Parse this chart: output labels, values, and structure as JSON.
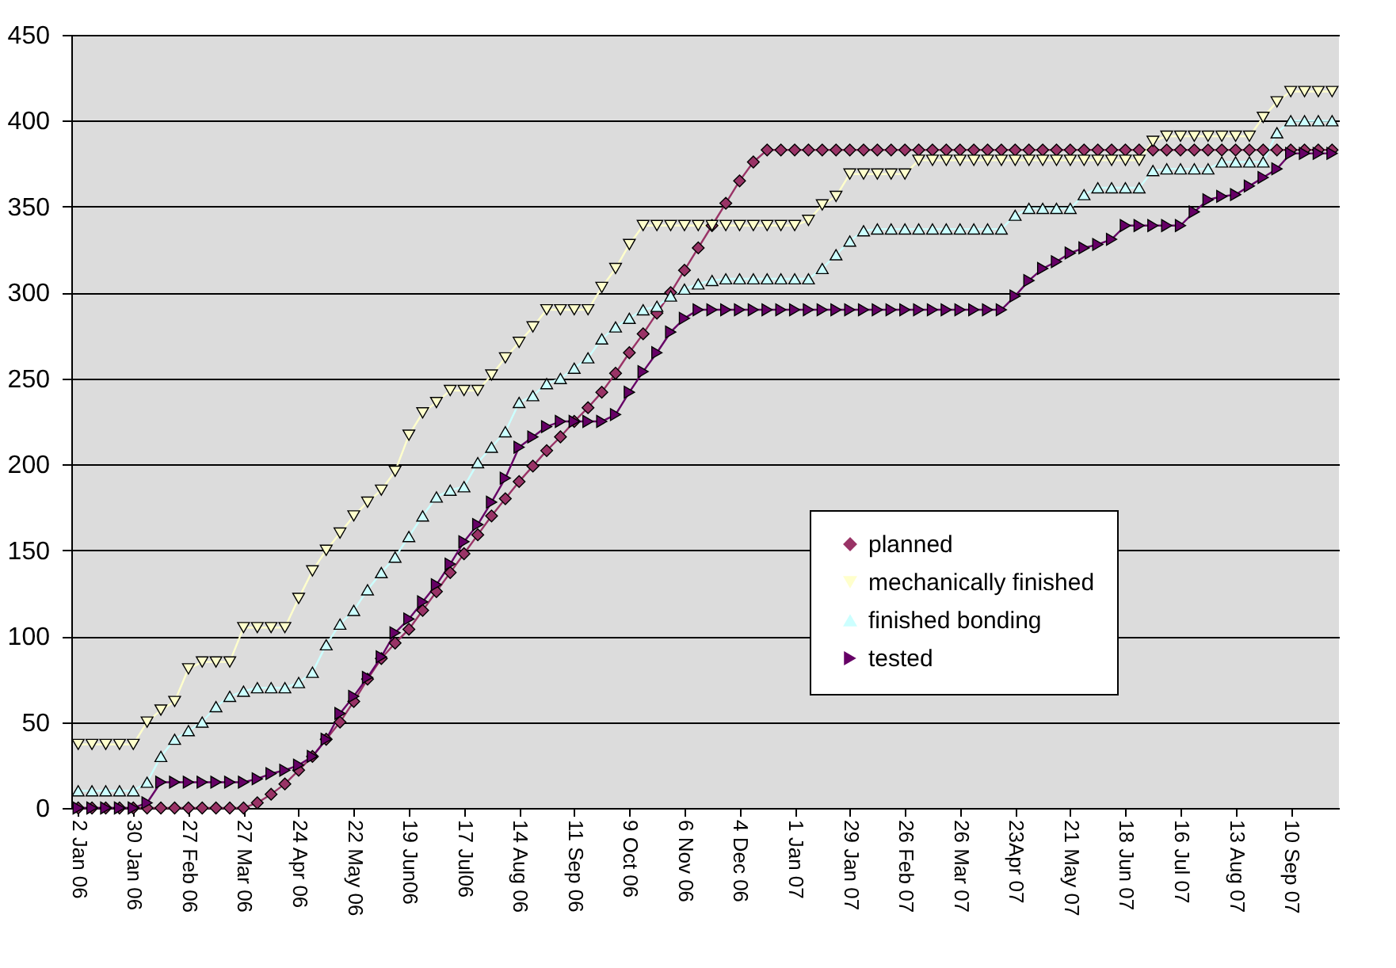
{
  "chart_data": {
    "type": "line",
    "categories": [
      "2 Jan 06",
      null,
      null,
      null,
      "30 Jan 06",
      null,
      null,
      null,
      "27 Feb 06",
      null,
      null,
      null,
      "27 Mar 06",
      null,
      null,
      null,
      "24 Apr 06",
      null,
      null,
      null,
      "22 May 06",
      null,
      null,
      null,
      "19 Jun06",
      null,
      null,
      null,
      "17 Jul06",
      null,
      null,
      null,
      "14 Aug 06",
      null,
      null,
      null,
      "11 Sep 06",
      null,
      null,
      null,
      "9 Oct 06",
      null,
      null,
      null,
      "6 Nov 06",
      null,
      null,
      null,
      "4 Dec 06",
      null,
      null,
      null,
      "1 Jan 07",
      null,
      null,
      null,
      "29 Jan 07",
      null,
      null,
      null,
      "26 Feb 07",
      null,
      null,
      null,
      "26 Mar 07",
      null,
      null,
      null,
      "23Apr 07",
      null,
      null,
      null,
      "21 May 07",
      null,
      null,
      null,
      "18 Jun 07",
      null,
      null,
      null,
      "16 Jul 07",
      null,
      null,
      null,
      "13 Aug 07",
      null,
      null,
      null,
      "10 Sep 07",
      null,
      null,
      null
    ],
    "series": [
      {
        "name": "planned",
        "color": "#993366",
        "marker": "diamond",
        "values": [
          0,
          0,
          0,
          0,
          0,
          0,
          0,
          0,
          0,
          0,
          0,
          0,
          0,
          3,
          8,
          14,
          22,
          30,
          40,
          50,
          62,
          75,
          87,
          96,
          104,
          115,
          126,
          137,
          148,
          159,
          170,
          180,
          190,
          199,
          208,
          216,
          225,
          233,
          242,
          253,
          265,
          276,
          288,
          300,
          313,
          326,
          339,
          352,
          365,
          376,
          383,
          383,
          383,
          383,
          383,
          383,
          383,
          383,
          383,
          383,
          383,
          383,
          383,
          383,
          383,
          383,
          383,
          383,
          383,
          383,
          383,
          383,
          383,
          383,
          383,
          383,
          383,
          383,
          383,
          383,
          383,
          383,
          383,
          383,
          383,
          383,
          383,
          383,
          383,
          383,
          383,
          383
        ]
      },
      {
        "name": "mechanically finished",
        "color": "#ffffcc",
        "marker": "triangle-down",
        "values": [
          37,
          37,
          37,
          37,
          37,
          50,
          57,
          62,
          81,
          85,
          85,
          85,
          105,
          105,
          105,
          105,
          122,
          138,
          150,
          160,
          170,
          178,
          185,
          196,
          217,
          230,
          236,
          243,
          243,
          243,
          252,
          262,
          271,
          280,
          290,
          290,
          290,
          290,
          303,
          314,
          328,
          339,
          339,
          339,
          339,
          339,
          339,
          339,
          339,
          339,
          339,
          339,
          339,
          342,
          351,
          356,
          369,
          369,
          369,
          369,
          369,
          377,
          377,
          377,
          377,
          377,
          377,
          377,
          377,
          377,
          377,
          377,
          377,
          377,
          377,
          377,
          377,
          377,
          388,
          391,
          391,
          391,
          391,
          391,
          391,
          391,
          402,
          411,
          417,
          417,
          417,
          417
        ]
      },
      {
        "name": "finished bonding",
        "color": "#ccffff",
        "marker": "triangle",
        "values": [
          10,
          10,
          10,
          10,
          10,
          15,
          30,
          40,
          45,
          50,
          59,
          65,
          68,
          70,
          70,
          70,
          73,
          79,
          95,
          107,
          115,
          127,
          137,
          146,
          158,
          170,
          181,
          185,
          187,
          201,
          210,
          219,
          236,
          240,
          247,
          250,
          256,
          262,
          273,
          280,
          285,
          290,
          292,
          298,
          302,
          305,
          307,
          308,
          308,
          308,
          308,
          308,
          308,
          308,
          314,
          322,
          330,
          336,
          337,
          337,
          337,
          337,
          337,
          337,
          337,
          337,
          337,
          337,
          345,
          349,
          349,
          349,
          349,
          357,
          361,
          361,
          361,
          361,
          371,
          372,
          372,
          372,
          372,
          376,
          376,
          376,
          376,
          393,
          400,
          400,
          400,
          400
        ]
      },
      {
        "name": "tested",
        "color": "#660066",
        "marker": "triangle-right",
        "values": [
          0,
          0,
          0,
          0,
          0,
          3,
          15,
          15,
          15,
          15,
          15,
          15,
          15,
          17,
          20,
          22,
          25,
          30,
          40,
          55,
          65,
          76,
          88,
          102,
          110,
          120,
          130,
          142,
          155,
          165,
          178,
          192,
          210,
          216,
          222,
          225,
          225,
          225,
          225,
          229,
          242,
          254,
          265,
          277,
          285,
          290,
          290,
          290,
          290,
          290,
          290,
          290,
          290,
          290,
          290,
          290,
          290,
          290,
          290,
          290,
          290,
          290,
          290,
          290,
          290,
          290,
          290,
          290,
          298,
          307,
          314,
          318,
          323,
          326,
          328,
          331,
          339,
          339,
          339,
          339,
          339,
          347,
          354,
          356,
          357,
          362,
          367,
          372,
          381,
          381,
          381,
          381
        ]
      }
    ],
    "ylim": [
      0,
      450
    ],
    "yticks": [
      0,
      50,
      100,
      150,
      200,
      250,
      300,
      350,
      400,
      450
    ],
    "grid": "y",
    "legend": "bottom right",
    "line_style": "solid"
  }
}
